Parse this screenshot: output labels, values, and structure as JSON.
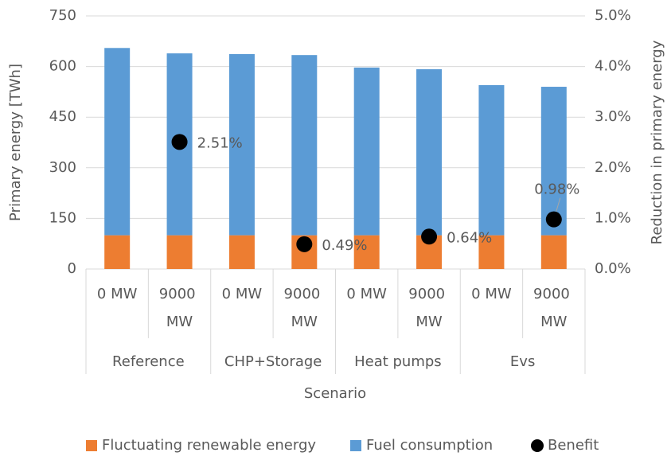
{
  "chart_data": {
    "type": "bar",
    "stacked": true,
    "x_label": "Scenario",
    "y_label": "Primary energy [TWh]",
    "y2_label": "Reduction in primary energy",
    "categories": [
      "0 MW",
      "9000 MW",
      "0 MW",
      "9000 MW",
      "0 MW",
      "9000 MW",
      "0 MW",
      "9000 MW"
    ],
    "category_groups": [
      "Reference",
      "CHP+Storage",
      "Heat pumps",
      "Evs"
    ],
    "series": [
      {
        "name": "Fluctuating renewable energy",
        "color": "#ed7d31",
        "values": [
          100,
          100,
          100,
          100,
          100,
          100,
          100,
          100
        ]
      },
      {
        "name": "Fuel consumption",
        "color": "#5b9bd5",
        "values": [
          555,
          539,
          537,
          534,
          497,
          492,
          445,
          440
        ]
      },
      {
        "name": "Benefit",
        "color": "#000000",
        "type": "scatter",
        "axis": "y2",
        "values": [
          null,
          2.51,
          null,
          0.49,
          null,
          0.64,
          null,
          0.98
        ],
        "value_labels": [
          null,
          "2.51%",
          null,
          "0.49%",
          null,
          "0.64%",
          null,
          "0.98%"
        ]
      }
    ],
    "ylim": [
      0,
      750
    ],
    "yticks": [
      0,
      150,
      300,
      450,
      600,
      750
    ],
    "y2lim": [
      0,
      5
    ],
    "y2ticks": [
      {
        "value": 0,
        "label": "0.0%"
      },
      {
        "value": 1,
        "label": "1.0%"
      },
      {
        "value": 2,
        "label": "2.0%"
      },
      {
        "value": 3,
        "label": "3.0%"
      },
      {
        "value": 4,
        "label": "4.0%"
      },
      {
        "value": 5,
        "label": "5.0%"
      }
    ],
    "grid": true,
    "legend": "bottom"
  }
}
